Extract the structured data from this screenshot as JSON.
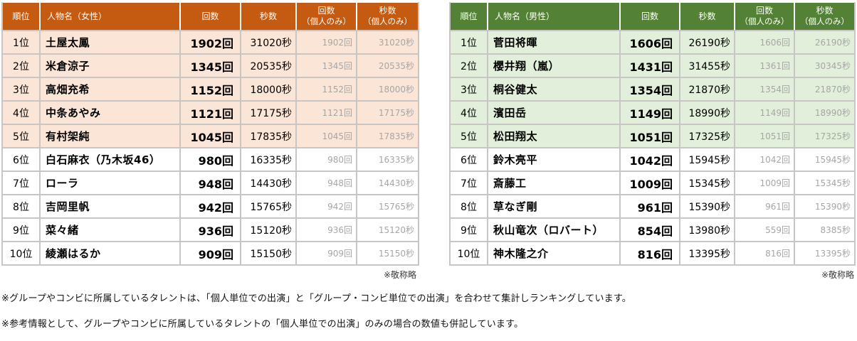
{
  "tables": [
    {
      "id": "female",
      "theme": {
        "header_bg": "#C55A11",
        "band_bg": "#FBE5D6"
      },
      "headers": [
        {
          "label": "順位",
          "sub": ""
        },
        {
          "label": "人物名（女性）",
          "sub": ""
        },
        {
          "label": "回数",
          "sub": ""
        },
        {
          "label": "秒数",
          "sub": ""
        },
        {
          "label": "回数",
          "sub": "（個人のみ）"
        },
        {
          "label": "秒数",
          "sub": "（個人のみ）"
        }
      ],
      "note": "※敬称略",
      "rows": [
        {
          "rank": "1位",
          "name": "土屋太鳳",
          "kaisu": "1902回",
          "byosu": "31020秒",
          "kaisu_solo": "1902回",
          "byosu_solo": "31020秒"
        },
        {
          "rank": "2位",
          "name": "米倉涼子",
          "kaisu": "1345回",
          "byosu": "20535秒",
          "kaisu_solo": "1345回",
          "byosu_solo": "20535秒"
        },
        {
          "rank": "3位",
          "name": "高畑充希",
          "kaisu": "1152回",
          "byosu": "18000秒",
          "kaisu_solo": "1152回",
          "byosu_solo": "18000秒"
        },
        {
          "rank": "4位",
          "name": "中条あやみ",
          "kaisu": "1121回",
          "byosu": "17175秒",
          "kaisu_solo": "1121回",
          "byosu_solo": "17175秒"
        },
        {
          "rank": "5位",
          "name": "有村架純",
          "kaisu": "1045回",
          "byosu": "17835秒",
          "kaisu_solo": "1045回",
          "byosu_solo": "17835秒"
        },
        {
          "rank": "6位",
          "name": "白石麻衣（乃木坂46）",
          "kaisu": "980回",
          "byosu": "16335秒",
          "kaisu_solo": "980回",
          "byosu_solo": "16335秒"
        },
        {
          "rank": "7位",
          "name": "ローラ",
          "kaisu": "948回",
          "byosu": "14430秒",
          "kaisu_solo": "948回",
          "byosu_solo": "14430秒"
        },
        {
          "rank": "8位",
          "name": "吉岡里帆",
          "kaisu": "942回",
          "byosu": "15765秒",
          "kaisu_solo": "942回",
          "byosu_solo": "15765秒"
        },
        {
          "rank": "9位",
          "name": "菜々緒",
          "kaisu": "936回",
          "byosu": "15120秒",
          "kaisu_solo": "936回",
          "byosu_solo": "15120秒"
        },
        {
          "rank": "10位",
          "name": "綾瀬はるか",
          "kaisu": "909回",
          "byosu": "15150秒",
          "kaisu_solo": "909回",
          "byosu_solo": "15150秒"
        }
      ]
    },
    {
      "id": "male",
      "theme": {
        "header_bg": "#538135",
        "band_bg": "#E2EFDA"
      },
      "headers": [
        {
          "label": "順位",
          "sub": ""
        },
        {
          "label": "人物名（男性）",
          "sub": ""
        },
        {
          "label": "回数",
          "sub": ""
        },
        {
          "label": "秒数",
          "sub": ""
        },
        {
          "label": "回数",
          "sub": "（個人のみ）"
        },
        {
          "label": "秒数",
          "sub": "（個人のみ）"
        }
      ],
      "note": "※敬称略",
      "rows": [
        {
          "rank": "1位",
          "name": "菅田将暉",
          "kaisu": "1606回",
          "byosu": "26190秒",
          "kaisu_solo": "1606回",
          "byosu_solo": "26190秒"
        },
        {
          "rank": "2位",
          "name": "櫻井翔（嵐）",
          "kaisu": "1431回",
          "byosu": "31455秒",
          "kaisu_solo": "1361回",
          "byosu_solo": "30345秒"
        },
        {
          "rank": "3位",
          "name": "桐谷健太",
          "kaisu": "1354回",
          "byosu": "21870秒",
          "kaisu_solo": "1354回",
          "byosu_solo": "21870秒"
        },
        {
          "rank": "4位",
          "name": "濱田岳",
          "kaisu": "1149回",
          "byosu": "18990秒",
          "kaisu_solo": "1149回",
          "byosu_solo": "18990秒"
        },
        {
          "rank": "5位",
          "name": "松田翔太",
          "kaisu": "1051回",
          "byosu": "17325秒",
          "kaisu_solo": "1051回",
          "byosu_solo": "17325秒"
        },
        {
          "rank": "6位",
          "name": "鈴木亮平",
          "kaisu": "1042回",
          "byosu": "15945秒",
          "kaisu_solo": "1042回",
          "byosu_solo": "15945秒"
        },
        {
          "rank": "7位",
          "name": "斎藤工",
          "kaisu": "1009回",
          "byosu": "15345秒",
          "kaisu_solo": "1009回",
          "byosu_solo": "15345秒"
        },
        {
          "rank": "8位",
          "name": "草なぎ剛",
          "kaisu": "961回",
          "byosu": "15390秒",
          "kaisu_solo": "961回",
          "byosu_solo": "15390秒"
        },
        {
          "rank": "9位",
          "name": "秋山竜次（ロバート）",
          "kaisu": "854回",
          "byosu": "13980秒",
          "kaisu_solo": "559回",
          "byosu_solo": "8385秒"
        },
        {
          "rank": "10位",
          "name": "神木隆之介",
          "kaisu": "816回",
          "byosu": "13395秒",
          "kaisu_solo": "816回",
          "byosu_solo": "13395秒"
        }
      ]
    }
  ],
  "footnotes": {
    "line1": "※グループやコンビに所属しているタレントは、「個人単位での出演」と「グループ・コンビ単位での出演」を合わせて集計しランキングしています。",
    "line2": "※参考情報として、グループやコンビに所属しているタレントの「個人単位での出演」のみの場合の数値も併記しています。"
  }
}
